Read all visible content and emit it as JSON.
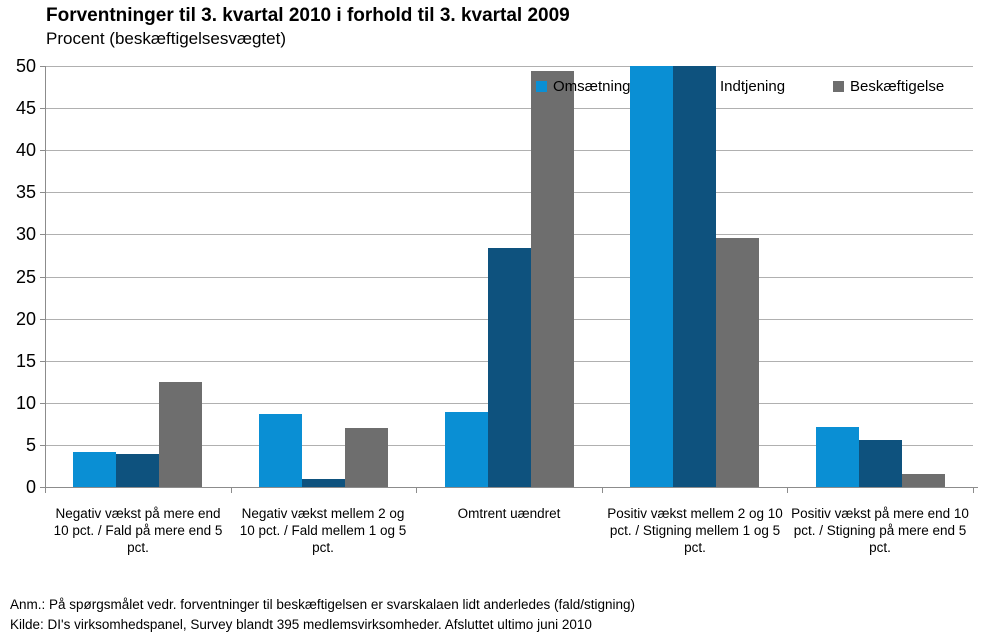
{
  "chart_data": {
    "type": "bar",
    "title": "Forventninger til 3. kvartal 2010 i forhold til 3. kvartal 2009",
    "subtitle": "Procent (beskæftigelsesvægtet)",
    "categories": [
      "Negativ vækst på mere end 10 pct. / Fald på mere end 5 pct.",
      "Negativ vækst mellem 2 og 10 pct. / Fald mellem 1 og 5 pct.",
      "Omtrent uændret",
      "Positiv vækst mellem 2 og 10 pct. / Stigning mellem 1 og 5 pct.",
      "Positiv vækst på mere end 10 pct. / Stigning på mere end 5 pct."
    ],
    "series": [
      {
        "name": "Omsætning",
        "color": "#0a8fd4",
        "values": [
          4.2,
          8.7,
          8.9,
          50,
          7.1
        ]
      },
      {
        "name": "Indtjening",
        "color": "#0e527e",
        "values": [
          3.9,
          0.9,
          28.4,
          50,
          5.6
        ]
      },
      {
        "name": "Beskæftigelse",
        "color": "#6e6e6e",
        "values": [
          12.5,
          7.0,
          49.4,
          29.6,
          1.6
        ]
      }
    ],
    "ylim": [
      0,
      50
    ],
    "yticks": [
      0,
      5,
      10,
      15,
      20,
      25,
      30,
      35,
      40,
      45,
      50
    ],
    "grid": true,
    "legend_position": "top-right"
  },
  "footnotes": {
    "anm": "Anm.: På spørgsmålet vedr. forventninger til beskæftigelsen  er svarskalaen lidt anderledes  (fald/stigning)",
    "kilde": "Kilde: DI's virksomhedspanel,  Survey blandt 395 medlemsvirksomheder.  Afsluttet  ultimo juni 2010"
  },
  "colors": {
    "gridline": "#b0b0b0",
    "axis": "#8c8c8c",
    "text": "#000000",
    "background": "#ffffff"
  }
}
